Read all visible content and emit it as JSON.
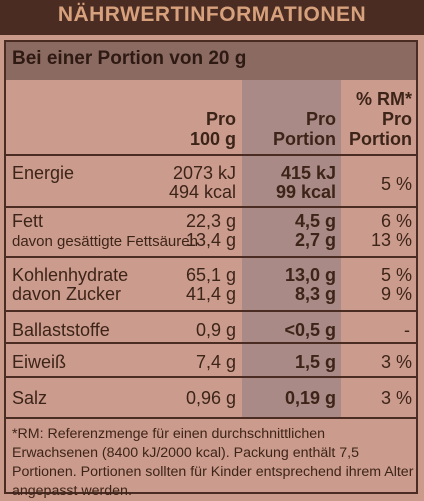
{
  "title": "NÄHRWERTINFORMATIONEN",
  "portion": "Bei einer Portion von 20 g",
  "headers": {
    "per100": [
      "Pro",
      "100 g"
    ],
    "perPortion": [
      "Pro",
      "Portion"
    ],
    "rm": [
      "% RM*",
      "Pro",
      "Portion"
    ]
  },
  "rows": {
    "energie": {
      "label": "Energie",
      "v100a": "2073 kJ",
      "v100b": "494 kcal",
      "pa": "415 kJ",
      "pb": "99 kcal",
      "rm": "5 %"
    },
    "fett": {
      "label": "Fett",
      "sub": "davon gesättigte Fettsäuren",
      "v100a": "22,3 g",
      "v100b": "13,4 g",
      "pa": "4,5 g",
      "pb": "2,7 g",
      "rma": "6 %",
      "rmb": "13 %"
    },
    "kh": {
      "label": "Kohlenhydrate",
      "sub": "davon Zucker",
      "v100a": "65,1 g",
      "v100b": "41,4 g",
      "pa": "13,0 g",
      "pb": "8,3 g",
      "rma": "5 %",
      "rmb": "9 %"
    },
    "ballast": {
      "label": "Ballaststoffe",
      "v100": "0,9 g",
      "p": "<0,5 g",
      "rm": "-"
    },
    "eiweiss": {
      "label": "Eiweiß",
      "v100": "7,4 g",
      "p": "1,5 g",
      "rm": "3 %"
    },
    "salz": {
      "label": "Salz",
      "v100": "0,96 g",
      "p": "0,19 g",
      "rm": "3 %"
    }
  },
  "footnote": "*RM: Referenzmenge für einen durchschnittlichen Erwachsenen (8400 kJ/2000 kcal). Packung enthält 7,5 Portionen. Portionen sollten für Kinder entsprechend ihrem Alter angepasst werden."
}
